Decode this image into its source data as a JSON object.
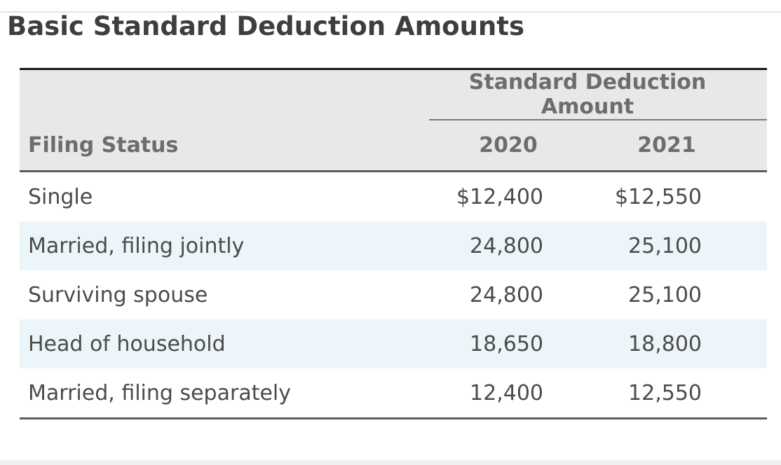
{
  "page": {
    "title": "Basic Standard Deduction Amounts"
  },
  "table": {
    "span_header": "Standard Deduction Amount",
    "col_headers": {
      "filing_status": "Filing Status",
      "year_2020": "2020",
      "year_2021": "2021"
    },
    "rows": [
      {
        "status": "Single",
        "amount_2020": "$12,400",
        "amount_2021": "$12,550"
      },
      {
        "status": "Married, filing jointly",
        "amount_2020": "24,800",
        "amount_2021": "25,100"
      },
      {
        "status": "Surviving spouse",
        "amount_2020": "24,800",
        "amount_2021": "25,100"
      },
      {
        "status": "Head of household",
        "amount_2020": "18,650",
        "amount_2021": "18,800"
      },
      {
        "status": "Married, filing separately",
        "amount_2020": "12,400",
        "amount_2021": "12,550"
      }
    ]
  },
  "colors": {
    "title_text": "#3e3e3e",
    "header_bg": "#e8e8e8",
    "header_text": "#6d6d6d",
    "body_text": "#4b4b4b",
    "stripe_bg": "#ecf5f9",
    "top_border": "#181818",
    "heavy_border": "#5d5d5d",
    "span_underline": "#7e7e7e",
    "bottom_strip": "#efefef"
  },
  "chart_data": {
    "type": "table",
    "title": "Basic Standard Deduction Amounts",
    "column_group_header": "Standard Deduction Amount",
    "columns": [
      "Filing Status",
      "2020",
      "2021"
    ],
    "rows": [
      [
        "Single",
        "$12,400",
        "$12,550"
      ],
      [
        "Married, filing jointly",
        "24,800",
        "25,100"
      ],
      [
        "Surviving spouse",
        "24,800",
        "25,100"
      ],
      [
        "Head of household",
        "18,650",
        "18,800"
      ],
      [
        "Married, filing separately",
        "12,400",
        "12,550"
      ]
    ]
  }
}
